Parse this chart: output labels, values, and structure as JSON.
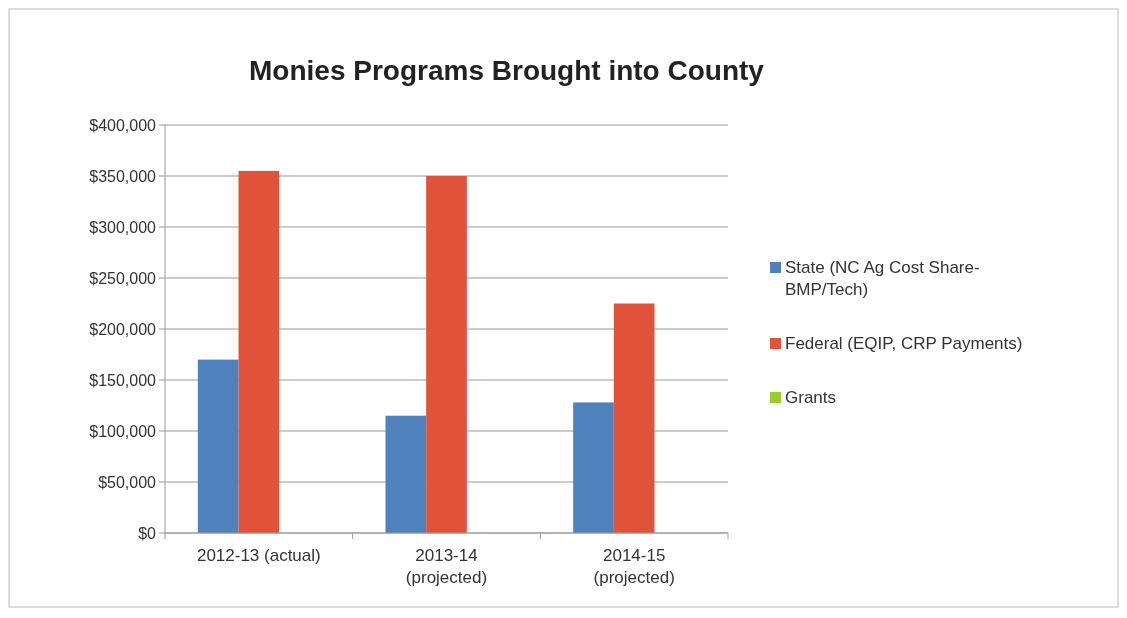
{
  "chart_data": {
    "type": "bar",
    "title": "Monies Programs Brought into County",
    "categories": [
      "2012-13 (actual)",
      "2013-14 (projected)",
      "2014-15 (projected)"
    ],
    "series": [
      {
        "name": "State (NC Ag Cost Share-BMP/Tech)",
        "color": "#4f81bd",
        "values": [
          170000,
          115000,
          128000
        ]
      },
      {
        "name": "Federal (EQIP, CRP Payments)",
        "color": "#e0533a",
        "values": [
          355000,
          350000,
          225000
        ]
      },
      {
        "name": "Grants",
        "color": "#9bcc2e",
        "values": [
          null,
          null,
          null
        ]
      }
    ],
    "ylim": [
      0,
      400000
    ],
    "yticks": [
      {
        "value": 0,
        "label": "$0"
      },
      {
        "value": 50000,
        "label": "$50,000"
      },
      {
        "value": 100000,
        "label": "$100,000"
      },
      {
        "value": 150000,
        "label": "$150,000"
      },
      {
        "value": 200000,
        "label": "$200,000"
      },
      {
        "value": 250000,
        "label": "$250,000"
      },
      {
        "value": 300000,
        "label": "$300,000"
      },
      {
        "value": 350000,
        "label": "$350,000"
      },
      {
        "value": 400000,
        "label": "$400,000"
      }
    ],
    "grid": "y",
    "legend": "right"
  }
}
